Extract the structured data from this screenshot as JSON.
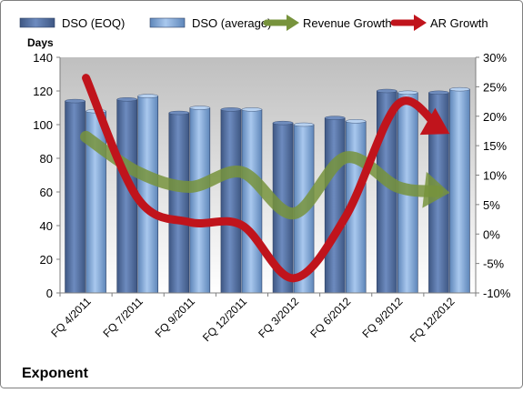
{
  "chart_data": {
    "type": "bar",
    "title": "",
    "footer_label": "Exponent",
    "y_left_label": "Days",
    "categories": [
      "FQ 4/2011",
      "FQ 7/2011",
      "FQ 9/2011",
      "FQ 12/2011",
      "FQ 3/2012",
      "FQ 6/2012",
      "FQ 9/2012",
      "FQ 12/2012"
    ],
    "ylim_left": [
      0,
      140
    ],
    "yticks_left": [
      0,
      20,
      40,
      60,
      80,
      100,
      120,
      140
    ],
    "ylim_right": [
      -10,
      30
    ],
    "yticks_right": [
      -10,
      -5,
      0,
      5,
      10,
      15,
      20,
      25,
      30
    ],
    "yticks_right_labels": [
      "-10%",
      "-5%",
      "0%",
      "5%",
      "10%",
      "15%",
      "20%",
      "25%",
      "30%"
    ],
    "bar_series": [
      {
        "name": "DSO (EOQ)",
        "color": "#4f6b9a",
        "values": [
          114,
          115,
          107,
          109,
          101,
          104,
          120,
          119
        ]
      },
      {
        "name": "DSO (average)",
        "color": "#8eb4e3",
        "values": [
          108,
          117,
          110,
          109,
          100,
          102,
          119,
          121
        ]
      }
    ],
    "line_series": [
      {
        "name": "Revenue Growth",
        "color": "#77933c",
        "axis": "right",
        "values": [
          16.5,
          10.5,
          8,
          10.5,
          3.5,
          13,
          8,
          7
        ]
      },
      {
        "name": "AR Growth",
        "color": "#c0141c",
        "axis": "right",
        "values": [
          26.5,
          6,
          2,
          1.5,
          -7.5,
          3,
          22,
          17
        ]
      }
    ],
    "legend_position": "top",
    "grid": false
  }
}
